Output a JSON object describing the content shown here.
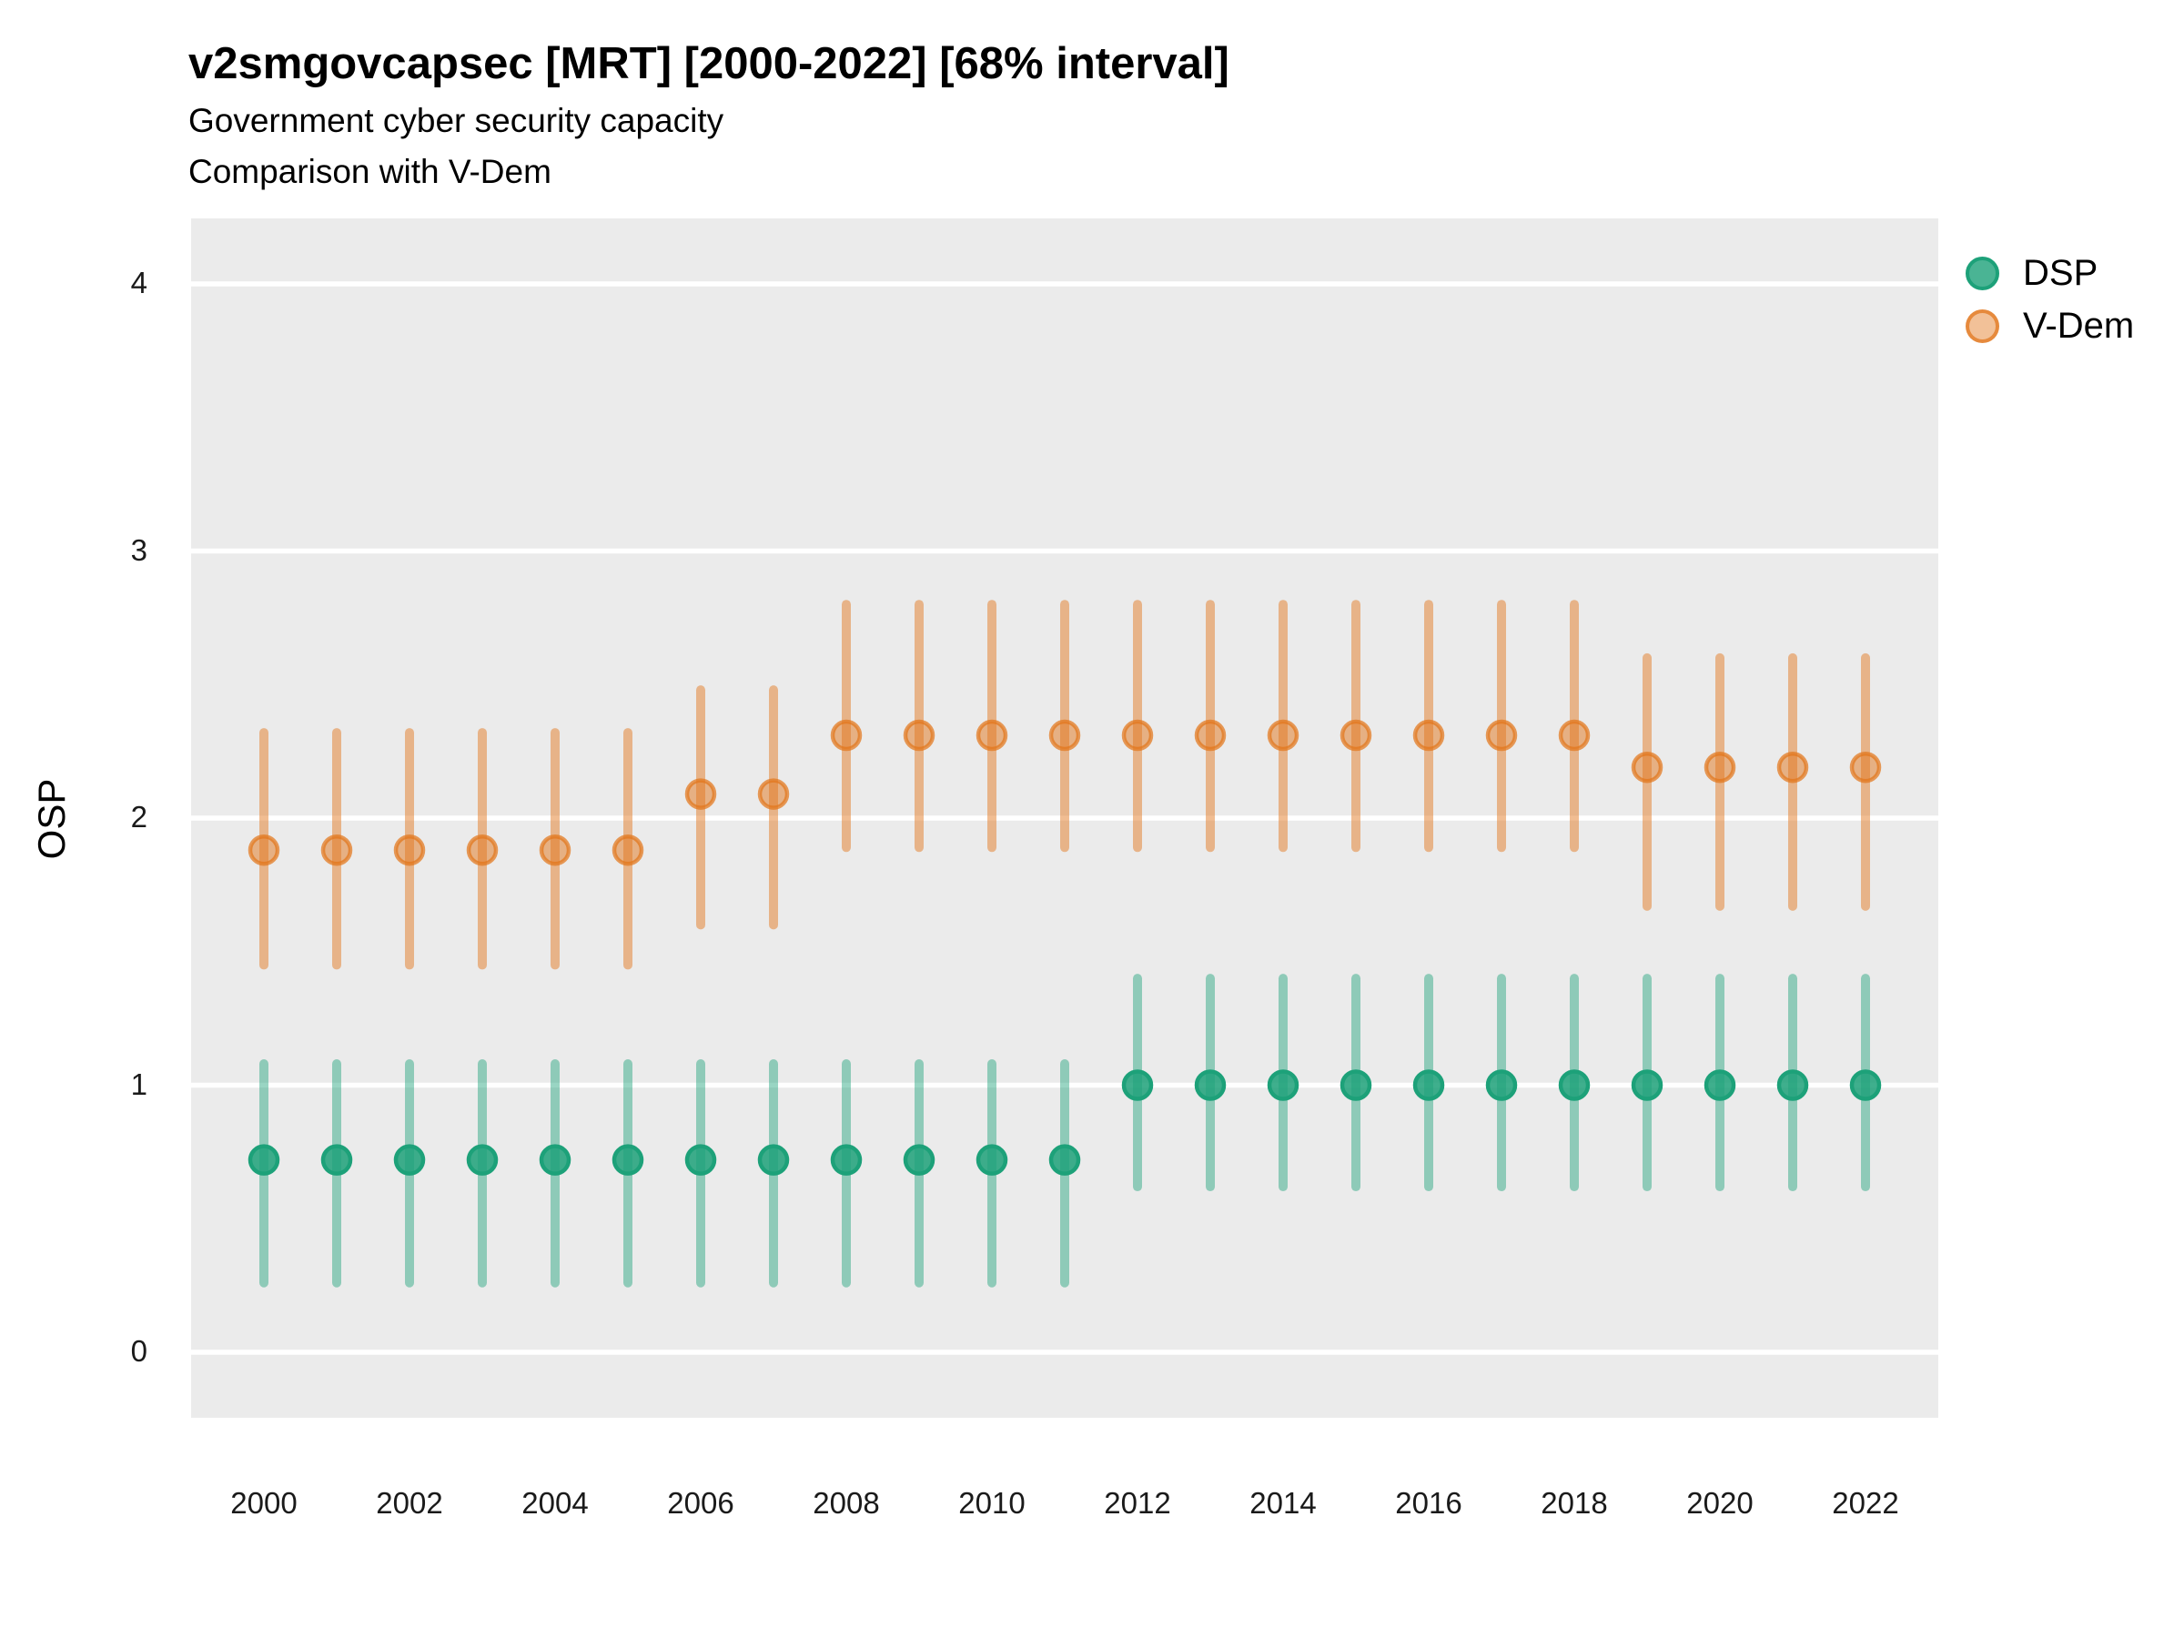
{
  "header": {
    "title": "v2smgovcapsec [MRT] [2000-2022] [68% interval]",
    "subtitle1": "Government cyber security capacity",
    "subtitle2": "Comparison with V-Dem"
  },
  "y_axis": {
    "label": "OSP",
    "ticks": [
      "0",
      "1",
      "2",
      "3",
      "4"
    ],
    "tick_values": [
      0,
      1,
      2,
      3,
      4
    ]
  },
  "x_axis": {
    "ticks": [
      "2000",
      "2002",
      "2004",
      "2006",
      "2008",
      "2010",
      "2012",
      "2014",
      "2016",
      "2018",
      "2020",
      "2022"
    ]
  },
  "legend": {
    "items": [
      {
        "label": "DSP",
        "color": "#1DA179"
      },
      {
        "label": "V-Dem",
        "color": "#E2761B"
      }
    ]
  },
  "colors": {
    "dsp": "#1DA179",
    "vdem": "#E2761B",
    "panel_bg": "#EBEBEB",
    "gridline": "#FFFFFF",
    "text": "#000000",
    "axis_text": "#1a1a1a"
  },
  "chart_data": {
    "type": "pointrange",
    "title": "v2smgovcapsec [MRT] [2000-2022] [68% interval]",
    "subtitle": "Government cyber security capacity — Comparison with V-Dem",
    "interval": "68%",
    "xlabel": "",
    "ylabel": "OSP",
    "x": [
      2000,
      2001,
      2002,
      2003,
      2004,
      2005,
      2006,
      2007,
      2008,
      2009,
      2010,
      2011,
      2012,
      2013,
      2014,
      2015,
      2016,
      2017,
      2018,
      2019,
      2020,
      2021,
      2022
    ],
    "series": [
      {
        "name": "DSP",
        "color": "#1DA179",
        "median": [
          0.72,
          0.72,
          0.72,
          0.72,
          0.72,
          0.72,
          0.72,
          0.72,
          0.72,
          0.72,
          0.72,
          0.72,
          1.0,
          1.0,
          1.0,
          1.0,
          1.0,
          1.0,
          1.0,
          1.0,
          1.0,
          1.0,
          1.0
        ],
        "lower": [
          0.26,
          0.26,
          0.26,
          0.26,
          0.26,
          0.26,
          0.26,
          0.26,
          0.26,
          0.26,
          0.26,
          0.26,
          0.62,
          0.62,
          0.62,
          0.62,
          0.62,
          0.62,
          0.62,
          0.62,
          0.62,
          0.62,
          0.62
        ],
        "upper": [
          1.08,
          1.08,
          1.08,
          1.08,
          1.08,
          1.08,
          1.08,
          1.08,
          1.08,
          1.08,
          1.08,
          1.08,
          1.4,
          1.4,
          1.4,
          1.4,
          1.4,
          1.4,
          1.4,
          1.4,
          1.4,
          1.4,
          1.4
        ]
      },
      {
        "name": "V-Dem",
        "color": "#E2761B",
        "median": [
          1.88,
          1.88,
          1.88,
          1.88,
          1.88,
          1.88,
          2.09,
          2.09,
          2.31,
          2.31,
          2.31,
          2.31,
          2.31,
          2.31,
          2.31,
          2.31,
          2.31,
          2.31,
          2.31,
          2.19,
          2.19,
          2.19,
          2.19
        ],
        "lower": [
          1.45,
          1.45,
          1.45,
          1.45,
          1.45,
          1.45,
          1.6,
          1.6,
          1.89,
          1.89,
          1.89,
          1.89,
          1.89,
          1.89,
          1.89,
          1.89,
          1.89,
          1.89,
          1.89,
          1.67,
          1.67,
          1.67,
          1.67
        ],
        "upper": [
          2.32,
          2.32,
          2.32,
          2.32,
          2.32,
          2.32,
          2.48,
          2.48,
          2.8,
          2.8,
          2.8,
          2.8,
          2.8,
          2.8,
          2.8,
          2.8,
          2.8,
          2.8,
          2.8,
          2.6,
          2.6,
          2.6,
          2.6
        ]
      }
    ],
    "xlim": [
      1999,
      2023
    ],
    "ylim": [
      -0.25,
      4.25
    ],
    "y_gridlines": [
      0,
      1,
      2,
      3,
      4
    ],
    "grid": "major horizontal white lines on gray panel",
    "legend_position": "right-top"
  }
}
